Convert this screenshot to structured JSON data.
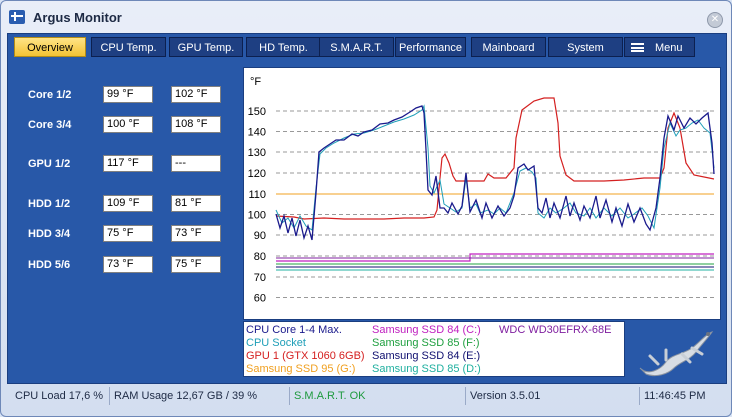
{
  "window": {
    "title": "Argus Monitor"
  },
  "tabs": [
    {
      "label": "Overview",
      "active": true
    },
    {
      "label": "CPU Temp."
    },
    {
      "label": "GPU Temp."
    },
    {
      "label": "HD Temp."
    },
    {
      "label": "S.M.A.R.T."
    },
    {
      "label": "Performance"
    },
    {
      "label": "Mainboard"
    },
    {
      "label": "System"
    },
    {
      "label": "Menu"
    }
  ],
  "readings": [
    {
      "label": "Core 1/2",
      "v1": "99 °F",
      "v2": "102 °F"
    },
    {
      "label": "Core 3/4",
      "v1": "100 °F",
      "v2": "108 °F"
    },
    {
      "label": "GPU 1/2",
      "v1": "117 °F",
      "v2": "---"
    },
    {
      "label": "HDD 1/2",
      "v1": "109 °F",
      "v2": "81 °F"
    },
    {
      "label": "HDD 3/4",
      "v1": "75 °F",
      "v2": "73 °F"
    },
    {
      "label": "HDD 5/6",
      "v1": "73 °F",
      "v2": "75 °F"
    }
  ],
  "graph": {
    "unit": "°F",
    "y_ticks": [
      "150",
      "140",
      "130",
      "120",
      "110",
      "100",
      "90",
      "80",
      "70",
      "60"
    ],
    "ylim": [
      60,
      150
    ]
  },
  "legend": [
    {
      "label": "CPU Core 1-4 Max.",
      "color": "#1a1a8c"
    },
    {
      "label": "CPU Socket",
      "color": "#1f9fb8"
    },
    {
      "label": "GPU 1 (GTX 1060 6GB)",
      "color": "#d42020"
    },
    {
      "label": "Samsung SSD 95 (G:)",
      "color": "#f0a020"
    },
    {
      "label": "Samsung SSD 84 (C:)",
      "color": "#c020c0"
    },
    {
      "label": "Samsung SSD 85 (F:)",
      "color": "#20a040"
    },
    {
      "label": "Samsung SSD 84 (E:)",
      "color": "#101070"
    },
    {
      "label": "Samsung SSD 85 (D:)",
      "color": "#20b0a0"
    },
    {
      "label": "WDC WD30EFRX-68E",
      "color": "#8020a0"
    }
  ],
  "status": {
    "cpu_load": "CPU Load 17,6 %",
    "ram_usage": "RAM Usage 12,67 GB / 39 %",
    "smart": "S.M.A.R.T. OK",
    "version": "Version 3.5.01",
    "time": "11:46:45 PM"
  },
  "colors": {
    "panel": "#2858a8",
    "active_tab": "#f3c234",
    "smart_ok": "#1e9a3e"
  }
}
